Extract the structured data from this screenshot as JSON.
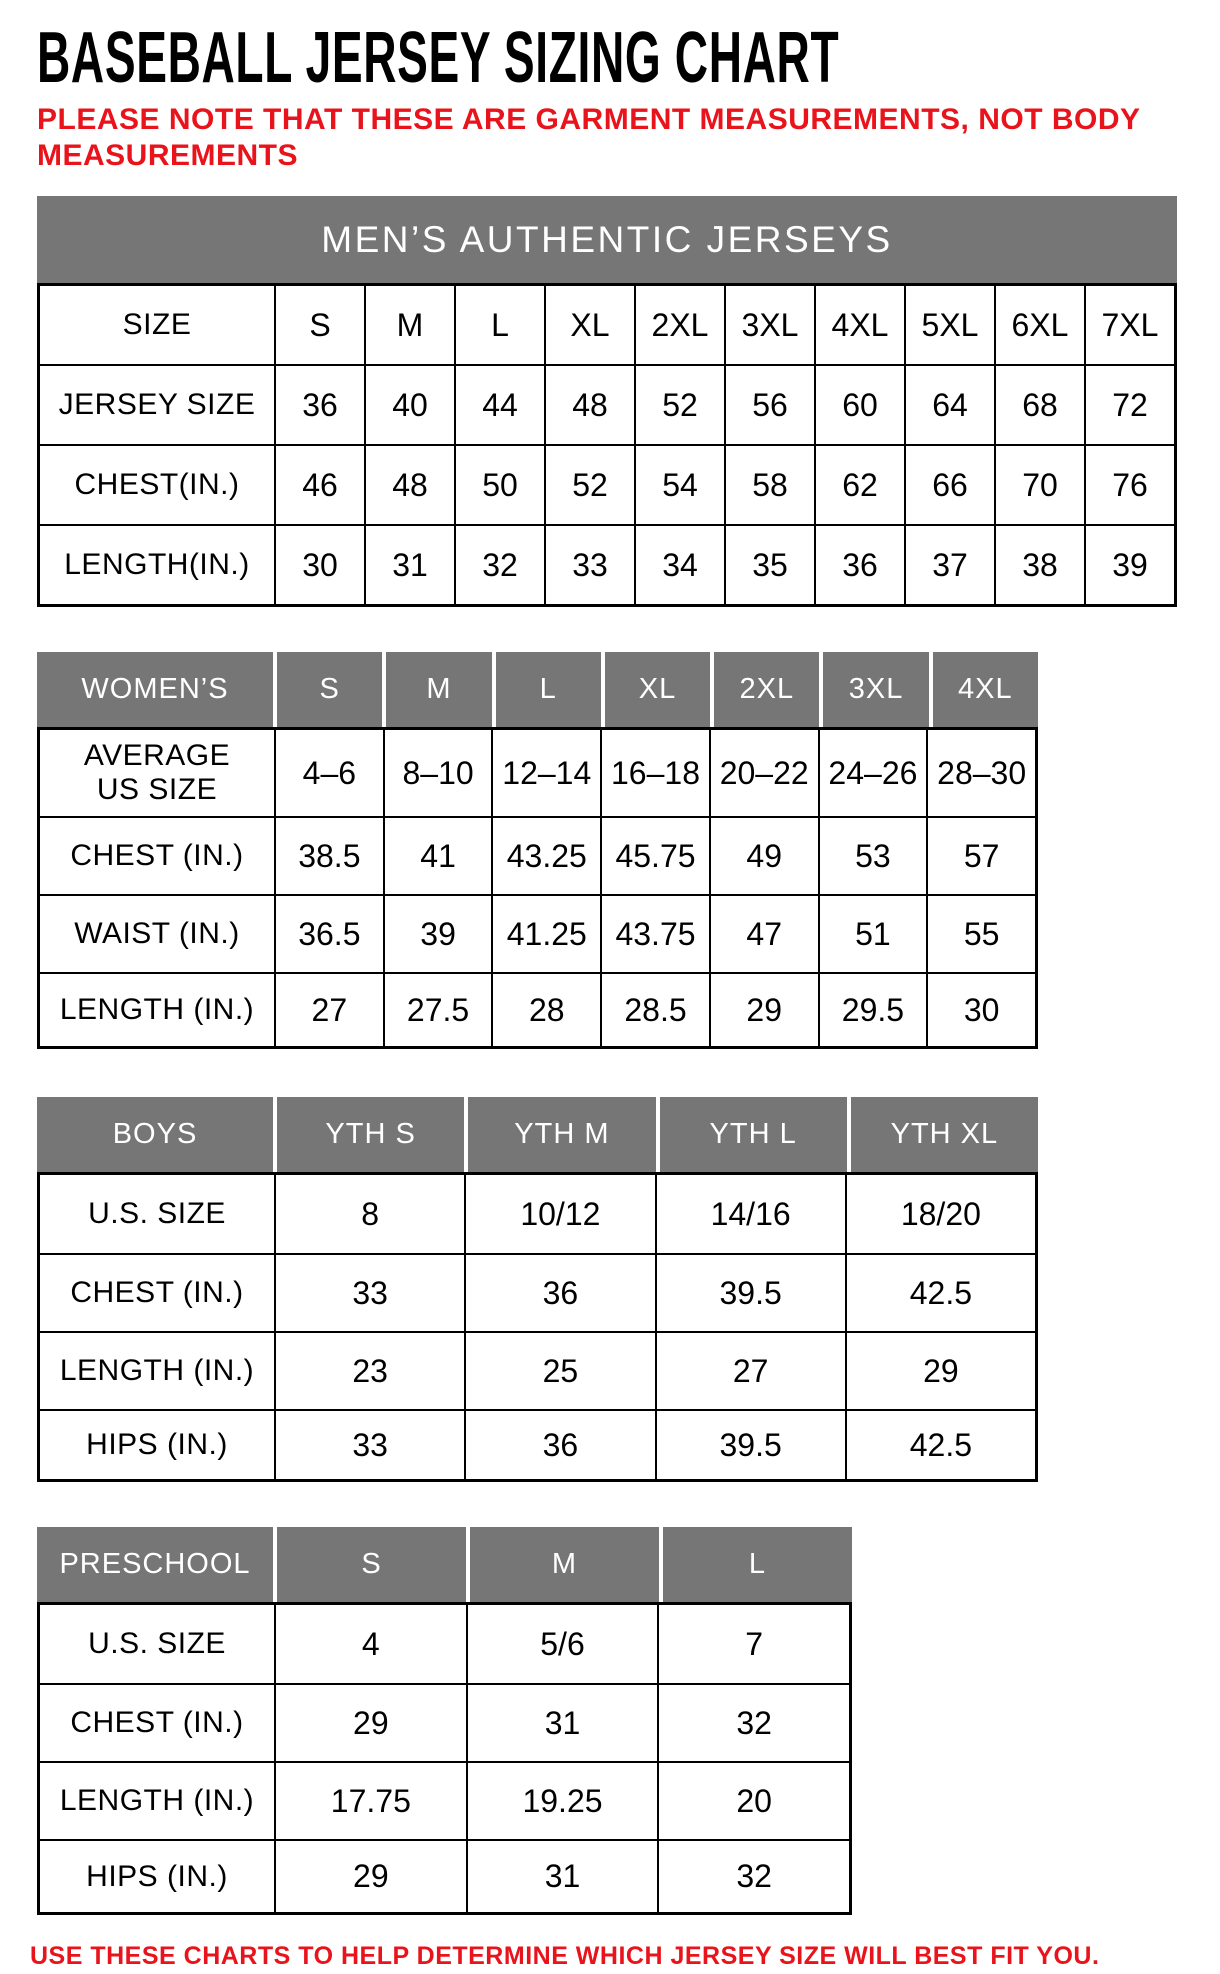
{
  "page": {
    "title": "BASEBALL JERSEY SIZING CHART",
    "note_lines": [
      "PLEASE NOTE THAT THESE ARE GARMENT MEASUREMENTS, NOT BODY",
      "MEASUREMENTS"
    ],
    "footer": "USE THESE CHARTS TO HELP DETERMINE WHICH JERSEY SIZE WILL BEST FIT YOU."
  },
  "colors": {
    "accent_red": "#e8131b",
    "header_gray": "#767676",
    "header_text": "#ffffff",
    "border": "#000000"
  },
  "tables": [
    {
      "id": "mens",
      "banner": "MEN’S AUTHENTIC JERSEYS",
      "size_row": {
        "label": "SIZE",
        "values": [
          "S",
          "M",
          "L",
          "XL",
          "2XL",
          "3XL",
          "4XL",
          "5XL",
          "6XL",
          "7XL"
        ]
      },
      "rows": [
        {
          "label": "JERSEY SIZE",
          "values": [
            "36",
            "40",
            "44",
            "48",
            "52",
            "56",
            "60",
            "64",
            "68",
            "72"
          ]
        },
        {
          "label": "CHEST(IN.)",
          "values": [
            "46",
            "48",
            "50",
            "52",
            "54",
            "58",
            "62",
            "66",
            "70",
            "76"
          ]
        },
        {
          "label": "LENGTH(IN.)",
          "values": [
            "30",
            "31",
            "32",
            "33",
            "34",
            "35",
            "36",
            "37",
            "38",
            "39"
          ]
        }
      ]
    },
    {
      "id": "womens",
      "header": {
        "label": "WOMEN’S",
        "values": [
          "S",
          "M",
          "L",
          "XL",
          "2XL",
          "3XL",
          "4XL"
        ]
      },
      "rows": [
        {
          "label_lines": [
            "AVERAGE",
            "US SIZE"
          ],
          "values": [
            "4–6",
            "8–10",
            "12–14",
            "16–18",
            "20–22",
            "24–26",
            "28–30"
          ]
        },
        {
          "label": "CHEST (IN.)",
          "values": [
            "38.5",
            "41",
            "43.25",
            "45.75",
            "49",
            "53",
            "57"
          ]
        },
        {
          "label": "WAIST (IN.)",
          "values": [
            "36.5",
            "39",
            "41.25",
            "43.75",
            "47",
            "51",
            "55"
          ]
        },
        {
          "label": "LENGTH (IN.)",
          "values": [
            "27",
            "27.5",
            "28",
            "28.5",
            "29",
            "29.5",
            "30"
          ]
        }
      ]
    },
    {
      "id": "boys",
      "header": {
        "label": "BOYS",
        "values": [
          "YTH S",
          "YTH M",
          "YTH L",
          "YTH XL"
        ]
      },
      "rows": [
        {
          "label": "U.S. SIZE",
          "values": [
            "8",
            "10/12",
            "14/16",
            "18/20"
          ]
        },
        {
          "label": "CHEST (IN.)",
          "values": [
            "33",
            "36",
            "39.5",
            "42.5"
          ]
        },
        {
          "label": "LENGTH (IN.)",
          "values": [
            "23",
            "25",
            "27",
            "29"
          ]
        },
        {
          "label": "HIPS (IN.)",
          "values": [
            "33",
            "36",
            "39.5",
            "42.5"
          ]
        }
      ]
    },
    {
      "id": "preschool",
      "header": {
        "label": "PRESCHOOL",
        "values": [
          "S",
          "M",
          "L"
        ]
      },
      "rows": [
        {
          "label": "U.S. SIZE",
          "values": [
            "4",
            "5/6",
            "7"
          ]
        },
        {
          "label": "CHEST (IN.)",
          "values": [
            "29",
            "31",
            "32"
          ]
        },
        {
          "label": "LENGTH (IN.)",
          "values": [
            "17.75",
            "19.25",
            "20"
          ]
        },
        {
          "label": "HIPS (IN.)",
          "values": [
            "29",
            "31",
            "32"
          ]
        }
      ]
    }
  ]
}
